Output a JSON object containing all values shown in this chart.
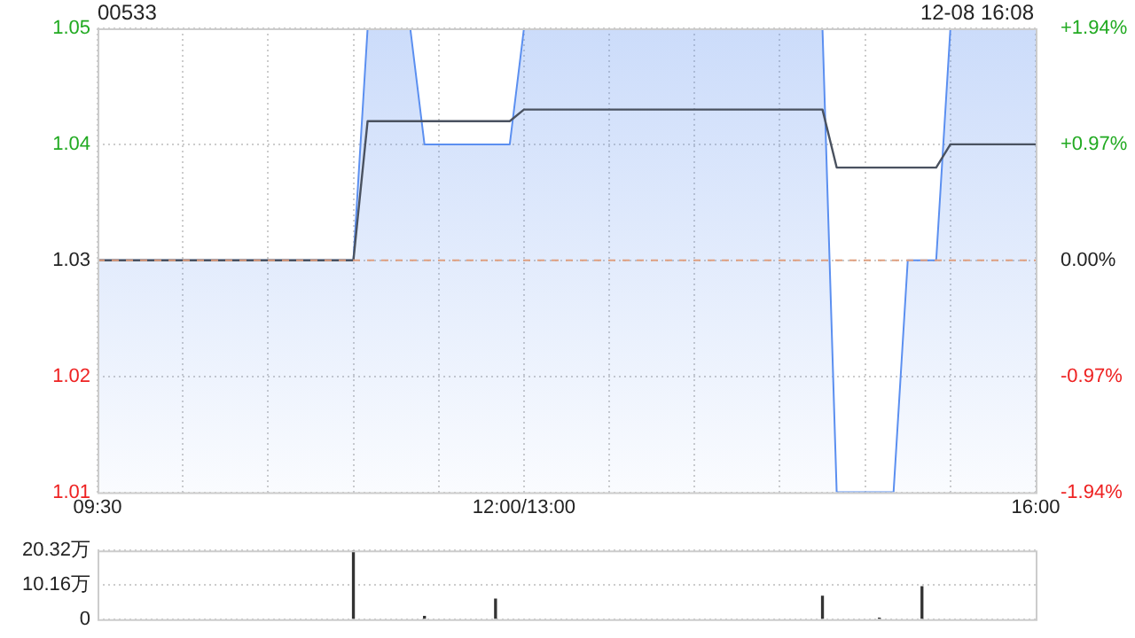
{
  "chart_data": [
    {
      "type": "area",
      "title": "00533",
      "annotations": [
        "12-08 16:08"
      ],
      "categories": [
        "09:30",
        null,
        null,
        null,
        null,
        null,
        null,
        null,
        null,
        null,
        null,
        null,
        null,
        null,
        null,
        null,
        null,
        null,
        null,
        null,
        null,
        null,
        null,
        null,
        null,
        null,
        null,
        null,
        null,
        null,
        "12:00/13:00",
        null,
        null,
        null,
        null,
        null,
        null,
        null,
        null,
        null,
        null,
        null,
        null,
        null,
        null,
        null,
        null,
        null,
        null,
        null,
        null,
        null,
        null,
        null,
        null,
        null,
        null,
        null,
        null,
        null,
        null,
        null,
        null,
        null,
        null,
        null,
        "16:00"
      ],
      "ylim": [
        1.01,
        1.05
      ],
      "yticks": [
        1.01,
        1.02,
        1.03,
        1.04,
        1.05
      ],
      "y2lim": [
        -1.94,
        1.94
      ],
      "y2ticks": [
        {
          "value": -1.94,
          "label": "-1.94%"
        },
        {
          "value": -0.97,
          "label": "-0.97%"
        },
        {
          "value": 0,
          "label": "0.00%"
        },
        {
          "value": 0.97,
          "label": "+0.97%"
        },
        {
          "value": 1.94,
          "label": "+1.94%"
        }
      ],
      "grid": true,
      "legend": false,
      "marker": "none",
      "ref_lines": [
        {
          "axis": "y",
          "value": 1.03,
          "color": "#e0a080",
          "line_style": "dashed"
        }
      ],
      "series": [
        {
          "color": "#5b8ff0",
          "values": [
            1.03,
            1.03,
            1.03,
            1.03,
            1.03,
            1.03,
            1.03,
            1.03,
            1.03,
            1.03,
            1.03,
            1.03,
            1.03,
            1.03,
            1.03,
            1.03,
            1.03,
            1.03,
            1.03,
            1.05,
            1.05,
            1.05,
            1.05,
            1.04,
            1.04,
            1.04,
            1.04,
            1.04,
            1.04,
            1.04,
            1.05,
            1.05,
            1.05,
            1.05,
            1.05,
            1.05,
            1.05,
            1.05,
            1.05,
            1.05,
            1.05,
            1.05,
            1.05,
            1.05,
            1.05,
            1.05,
            1.05,
            1.05,
            1.05,
            1.05,
            1.05,
            1.05,
            1.01,
            1.01,
            1.01,
            1.01,
            1.01,
            1.03,
            1.03,
            1.03,
            1.05,
            1.05,
            1.05,
            1.05,
            1.05,
            1.05,
            1.05
          ]
        },
        {
          "type": "line",
          "color": "#4a5260",
          "values": [
            1.03,
            1.03,
            1.03,
            1.03,
            1.03,
            1.03,
            1.03,
            1.03,
            1.03,
            1.03,
            1.03,
            1.03,
            1.03,
            1.03,
            1.03,
            1.03,
            1.03,
            1.03,
            1.03,
            1.042,
            1.042,
            1.042,
            1.042,
            1.042,
            1.042,
            1.042,
            1.042,
            1.042,
            1.042,
            1.042,
            1.043,
            1.043,
            1.043,
            1.043,
            1.043,
            1.043,
            1.043,
            1.043,
            1.043,
            1.043,
            1.043,
            1.043,
            1.043,
            1.043,
            1.043,
            1.043,
            1.043,
            1.043,
            1.043,
            1.043,
            1.043,
            1.043,
            1.038,
            1.038,
            1.038,
            1.038,
            1.038,
            1.038,
            1.038,
            1.038,
            1.04,
            1.04,
            1.04,
            1.04,
            1.04,
            1.04,
            1.04
          ]
        }
      ]
    },
    {
      "type": "bar",
      "categories": [
        null,
        null,
        null,
        null,
        null,
        null,
        null,
        null,
        null,
        null,
        null,
        null,
        null,
        null,
        null,
        null,
        null,
        null,
        null,
        null,
        null,
        null,
        null,
        null,
        null,
        null,
        null,
        null,
        null,
        null,
        null,
        null,
        null,
        null,
        null,
        null,
        null,
        null,
        null,
        null,
        null,
        null,
        null,
        null,
        null,
        null,
        null,
        null,
        null,
        null,
        null,
        null,
        null,
        null,
        null,
        null,
        null,
        null,
        null,
        null,
        null,
        null,
        null,
        null,
        null,
        null,
        null
      ],
      "ylim": [
        0,
        20.32
      ],
      "yticks": [
        {
          "value": 0,
          "label": "0"
        },
        {
          "value": 10.16,
          "label": "10.16万"
        },
        {
          "value": 20.32,
          "label": "20.32万"
        }
      ],
      "tick_labels": "y",
      "grid": "y",
      "legend": false,
      "series": [
        {
          "color": "#333333",
          "values": [
            null,
            null,
            null,
            null,
            null,
            null,
            null,
            null,
            null,
            null,
            null,
            null,
            null,
            null,
            null,
            null,
            null,
            null,
            20.3,
            null,
            null,
            null,
            null,
            0.8,
            null,
            null,
            null,
            null,
            5.9,
            null,
            null,
            null,
            null,
            null,
            null,
            null,
            null,
            null,
            null,
            null,
            null,
            null,
            null,
            null,
            null,
            null,
            null,
            null,
            null,
            null,
            null,
            6.8,
            null,
            null,
            null,
            0.3,
            null,
            null,
            9.6,
            null,
            null,
            null,
            null,
            null,
            null,
            null,
            null
          ]
        }
      ]
    }
  ]
}
